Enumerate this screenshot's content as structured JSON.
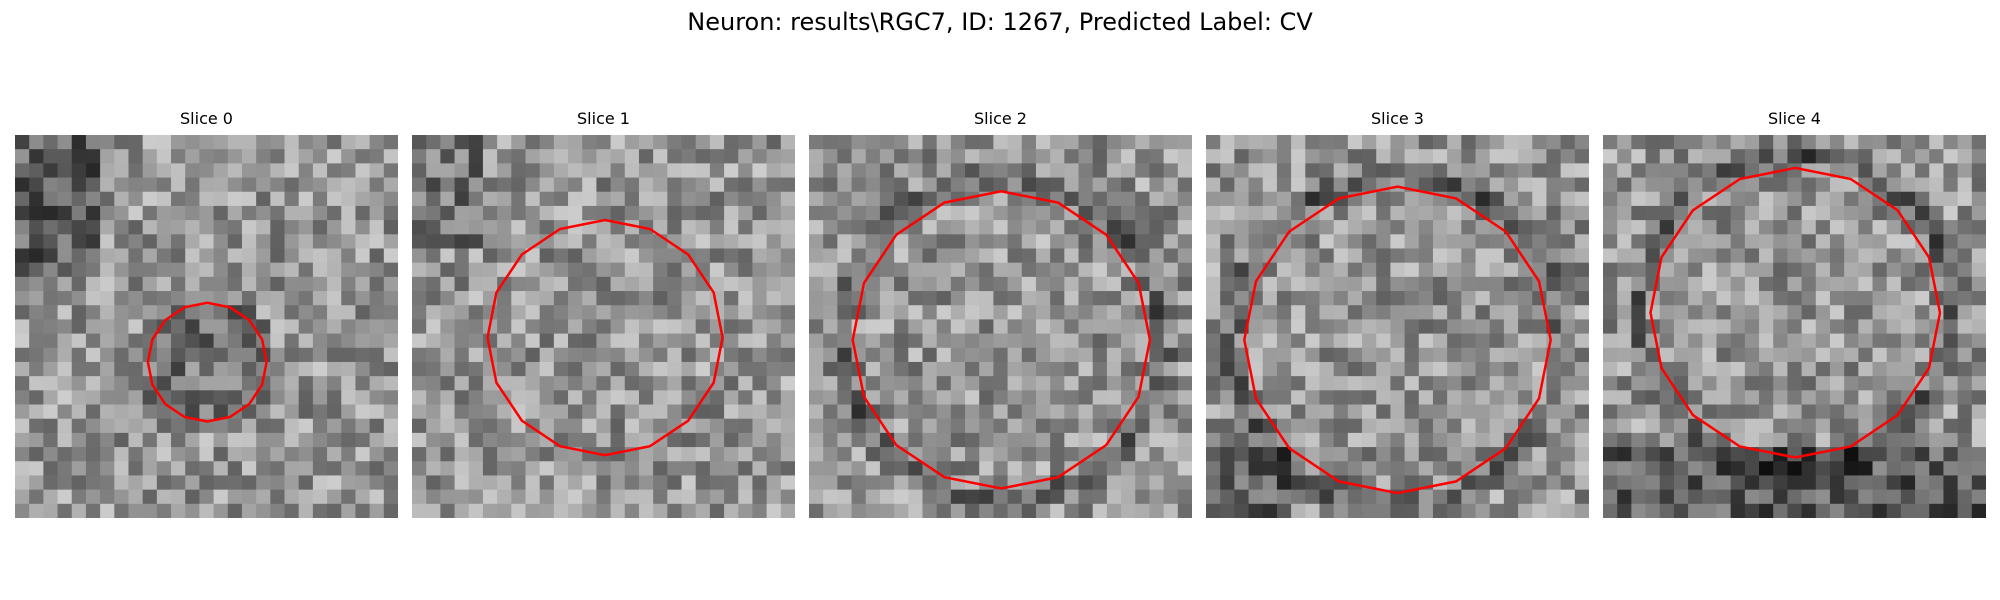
{
  "figure": {
    "title": "Neuron: results\\RGC7, ID: 1267, Predicted Label: CV"
  },
  "panels": [
    {
      "title": "Slice 0",
      "contour_center": [
        0.502,
        0.593
      ],
      "contour_radius": 0.155,
      "dark_ring": false,
      "seed": 7
    },
    {
      "title": "Slice 1",
      "contour_center": [
        0.504,
        0.529
      ],
      "contour_radius": 0.307,
      "dark_ring": false,
      "seed": 13
    },
    {
      "title": "Slice 2",
      "contour_center": [
        0.502,
        0.535
      ],
      "contour_radius": 0.388,
      "dark_ring": true,
      "seed": 21
    },
    {
      "title": "Slice 3",
      "contour_center": [
        0.5,
        0.535
      ],
      "contour_radius": 0.4,
      "dark_ring": true,
      "seed": 29
    },
    {
      "title": "Slice 4",
      "contour_center": [
        0.502,
        0.464
      ],
      "contour_radius": 0.378,
      "dark_ring": true,
      "seed": 37
    }
  ],
  "colors": {
    "contour": "#ff0000"
  }
}
